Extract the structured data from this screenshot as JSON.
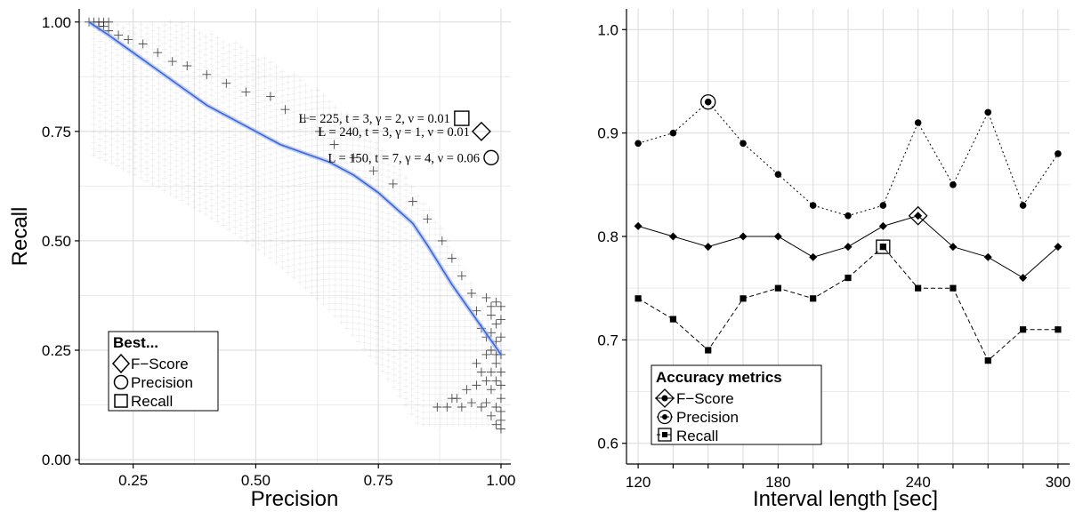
{
  "chart_data": [
    {
      "type": "scatter",
      "title": "",
      "xlabel": "Precision",
      "ylabel": "Recall",
      "xlim": [
        0.14,
        1.02
      ],
      "ylim": [
        -0.01,
        1.03
      ],
      "xticks": [
        "0.25",
        "0.50",
        "0.75",
        "1.00"
      ],
      "yticks": [
        "0.00",
        "0.25",
        "0.50",
        "0.75",
        "1.00"
      ],
      "grid": true,
      "cloud_marker": "plus",
      "cloud_points": [
        [
          0.16,
          1.0
        ],
        [
          0.17,
          1.0
        ],
        [
          0.18,
          1.0
        ],
        [
          0.19,
          1.0
        ],
        [
          0.2,
          1.0
        ],
        [
          0.18,
          0.99
        ],
        [
          0.19,
          0.99
        ],
        [
          0.2,
          0.98
        ],
        [
          0.22,
          0.97
        ],
        [
          0.24,
          0.96
        ],
        [
          0.27,
          0.95
        ],
        [
          0.3,
          0.93
        ],
        [
          0.33,
          0.91
        ],
        [
          0.36,
          0.9
        ],
        [
          0.4,
          0.88
        ],
        [
          0.44,
          0.86
        ],
        [
          0.48,
          0.84
        ],
        [
          0.53,
          0.83
        ],
        [
          0.56,
          0.8
        ],
        [
          0.6,
          0.78
        ],
        [
          0.63,
          0.75
        ],
        [
          0.66,
          0.72
        ],
        [
          0.7,
          0.69
        ],
        [
          0.74,
          0.66
        ],
        [
          0.78,
          0.63
        ],
        [
          0.82,
          0.59
        ],
        [
          0.85,
          0.55
        ],
        [
          0.88,
          0.5
        ],
        [
          0.9,
          0.46
        ],
        [
          0.92,
          0.42
        ],
        [
          0.94,
          0.38
        ],
        [
          0.95,
          0.34
        ],
        [
          0.96,
          0.3
        ],
        [
          0.97,
          0.28
        ],
        [
          0.98,
          0.25
        ],
        [
          0.99,
          0.22
        ],
        [
          1.0,
          0.2
        ],
        [
          0.97,
          0.37
        ],
        [
          0.98,
          0.35
        ],
        [
          0.99,
          0.36
        ],
        [
          1.0,
          0.35
        ],
        [
          0.98,
          0.33
        ],
        [
          0.99,
          0.31
        ],
        [
          1.0,
          0.32
        ],
        [
          0.98,
          0.29
        ],
        [
          0.99,
          0.27
        ],
        [
          1.0,
          0.28
        ],
        [
          0.97,
          0.24
        ],
        [
          0.99,
          0.24
        ],
        [
          1.0,
          0.24
        ],
        [
          0.95,
          0.22
        ],
        [
          0.96,
          0.2
        ],
        [
          0.98,
          0.2
        ],
        [
          0.99,
          0.18
        ],
        [
          1.0,
          0.17
        ],
        [
          0.97,
          0.18
        ],
        [
          0.93,
          0.16
        ],
        [
          0.95,
          0.17
        ],
        [
          0.98,
          0.16
        ],
        [
          1.0,
          0.14
        ],
        [
          0.9,
          0.14
        ],
        [
          0.91,
          0.14
        ],
        [
          0.94,
          0.13
        ],
        [
          0.97,
          0.13
        ],
        [
          0.99,
          0.12
        ],
        [
          1.0,
          0.11
        ],
        [
          0.87,
          0.12
        ],
        [
          0.89,
          0.12
        ],
        [
          0.92,
          0.12
        ],
        [
          0.96,
          0.12
        ],
        [
          0.98,
          0.1
        ],
        [
          1.0,
          0.09
        ],
        [
          0.99,
          0.08
        ],
        [
          1.0,
          0.07
        ]
      ],
      "fit_line": {
        "x": [
          0.16,
          0.2,
          0.25,
          0.3,
          0.35,
          0.4,
          0.45,
          0.5,
          0.55,
          0.6,
          0.65,
          0.7,
          0.75,
          0.78,
          0.8,
          0.82,
          0.85,
          0.9,
          0.95,
          1.0
        ],
        "y": [
          1.0,
          0.97,
          0.93,
          0.89,
          0.85,
          0.81,
          0.78,
          0.75,
          0.72,
          0.7,
          0.68,
          0.65,
          0.61,
          0.58,
          0.56,
          0.54,
          0.49,
          0.4,
          0.32,
          0.24
        ]
      },
      "annotations": [
        {
          "text": "L = 225, t = 3, γ = 2, ν = 0.01",
          "best": "Recall",
          "x": 0.92,
          "y": 0.78
        },
        {
          "text": "L = 240, t = 3, γ = 1, ν = 0.01",
          "best": "F-Score",
          "x": 0.96,
          "y": 0.75
        },
        {
          "text": "L = 150, t = 7, γ = 4, ν = 0.06",
          "best": "Precision",
          "x": 0.98,
          "y": 0.69
        }
      ],
      "legend": {
        "title": "Best...",
        "placement": "bottom-left",
        "items": [
          "F−Score",
          "Precision",
          "Recall"
        ]
      }
    },
    {
      "type": "line",
      "title": "",
      "xlabel": "Interval length [sec]",
      "ylabel": "",
      "x": [
        120,
        135,
        150,
        165,
        180,
        195,
        210,
        225,
        240,
        255,
        270,
        285,
        300
      ],
      "xlim": [
        115,
        305
      ],
      "ylim": [
        0.58,
        1.02
      ],
      "xticks": [
        "120",
        "180",
        "240",
        "300"
      ],
      "yticks": [
        "0.6",
        "0.7",
        "0.8",
        "0.9",
        "1.0"
      ],
      "grid": true,
      "series": [
        {
          "name": "F−Score",
          "line": "solid",
          "marker": "diamond",
          "values": [
            0.81,
            0.8,
            0.79,
            0.8,
            0.8,
            0.78,
            0.79,
            0.81,
            0.82,
            0.79,
            0.78,
            0.76,
            0.79
          ],
          "best_x": 240
        },
        {
          "name": "Precision",
          "line": "dotted",
          "marker": "circle",
          "values": [
            0.89,
            0.9,
            0.93,
            0.89,
            0.86,
            0.83,
            0.82,
            0.83,
            0.91,
            0.85,
            0.92,
            0.83,
            0.88
          ],
          "best_x": 150
        },
        {
          "name": "Recall",
          "line": "dashed",
          "marker": "square",
          "values": [
            0.74,
            0.72,
            0.69,
            0.74,
            0.75,
            0.74,
            0.76,
            0.79,
            0.75,
            0.75,
            0.68,
            0.71,
            0.71
          ],
          "best_x": 225
        }
      ],
      "legend": {
        "title": "Accuracy metrics",
        "placement": "bottom-left",
        "items": [
          "F−Score",
          "Precision",
          "Recall"
        ]
      }
    }
  ]
}
